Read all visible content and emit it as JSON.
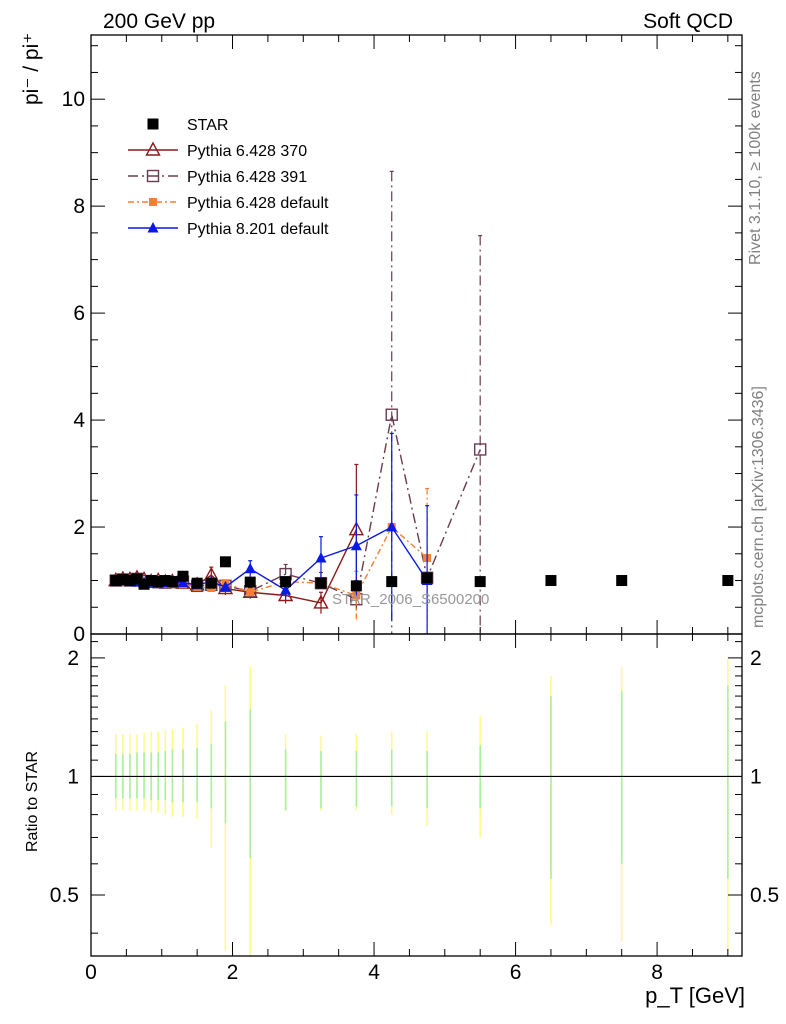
{
  "header": {
    "left": "200 GeV pp",
    "right": "Soft QCD"
  },
  "side_labels": {
    "rivet": "Rivet 3.1.10, ≥ 100k events",
    "source": "mcplots.cern.ch [arXiv:1306.3436]"
  },
  "watermark": "STAR_2006_S6500200",
  "chart_data": {
    "type": "line",
    "top_panel": {
      "ylabel": "pi⁻ / pi⁺",
      "xlim": [
        0,
        9.2
      ],
      "ylim": [
        0,
        11.2
      ],
      "yticks": [
        0,
        2,
        4,
        6,
        8,
        10
      ]
    },
    "ratio_panel": {
      "ylabel": "Ratio to STAR",
      "ylim": [
        0.35,
        2.3
      ],
      "log_scale": true,
      "yticks": [
        0.5,
        1,
        2
      ],
      "bands": [
        {
          "x": 0.35,
          "g": [
            0.88,
            1.14
          ],
          "y": [
            0.82,
            1.28
          ]
        },
        {
          "x": 0.45,
          "g": [
            0.88,
            1.14
          ],
          "y": [
            0.82,
            1.28
          ]
        },
        {
          "x": 0.55,
          "g": [
            0.88,
            1.14
          ],
          "y": [
            0.82,
            1.28
          ]
        },
        {
          "x": 0.65,
          "g": [
            0.88,
            1.15
          ],
          "y": [
            0.82,
            1.28
          ]
        },
        {
          "x": 0.75,
          "g": [
            0.88,
            1.15
          ],
          "y": [
            0.82,
            1.29
          ]
        },
        {
          "x": 0.85,
          "g": [
            0.87,
            1.15
          ],
          "y": [
            0.81,
            1.3
          ]
        },
        {
          "x": 0.95,
          "g": [
            0.87,
            1.15
          ],
          "y": [
            0.81,
            1.3
          ]
        },
        {
          "x": 1.05,
          "g": [
            0.87,
            1.16
          ],
          "y": [
            0.8,
            1.31
          ]
        },
        {
          "x": 1.15,
          "g": [
            0.86,
            1.17
          ],
          "y": [
            0.79,
            1.32
          ]
        },
        {
          "x": 1.3,
          "g": [
            0.86,
            1.17
          ],
          "y": [
            0.79,
            1.33
          ]
        },
        {
          "x": 1.5,
          "g": [
            0.86,
            1.18
          ],
          "y": [
            0.78,
            1.36
          ]
        },
        {
          "x": 1.7,
          "g": [
            0.83,
            1.21
          ],
          "y": [
            0.66,
            1.47
          ]
        },
        {
          "x": 1.9,
          "g": [
            0.76,
            1.38
          ],
          "y": [
            0.36,
            1.7
          ]
        },
        {
          "x": 2.25,
          "g": [
            0.62,
            1.48
          ],
          "y": [
            0.35,
            1.9
          ]
        },
        {
          "x": 2.75,
          "g": [
            0.82,
            1.17
          ],
          "y": [
            0.82,
            1.28
          ]
        },
        {
          "x": 3.25,
          "g": [
            0.83,
            1.16
          ],
          "y": [
            0.82,
            1.27
          ]
        },
        {
          "x": 3.75,
          "g": [
            0.84,
            1.16
          ],
          "y": [
            0.82,
            1.28
          ]
        },
        {
          "x": 4.25,
          "g": [
            0.84,
            1.17
          ],
          "y": [
            0.8,
            1.3
          ]
        },
        {
          "x": 4.75,
          "g": [
            0.83,
            1.16
          ],
          "y": [
            0.75,
            1.3
          ]
        },
        {
          "x": 5.5,
          "g": [
            0.83,
            1.2
          ],
          "y": [
            0.7,
            1.42
          ]
        },
        {
          "x": 6.5,
          "g": [
            0.55,
            1.6
          ],
          "y": [
            0.42,
            1.8
          ]
        },
        {
          "x": 7.5,
          "g": [
            0.6,
            1.65
          ],
          "y": [
            0.38,
            1.9
          ]
        },
        {
          "x": 9.0,
          "g": [
            0.55,
            1.7
          ],
          "y": [
            0.36,
            2.0
          ]
        }
      ]
    },
    "xlabel": "p_T [GeV]",
    "xticks": [
      0,
      2,
      4,
      6,
      8
    ],
    "series": [
      {
        "name": "STAR",
        "marker": "square-filled",
        "color": "#000000",
        "points": [
          {
            "x": 0.35,
            "y": 1.0
          },
          {
            "x": 0.45,
            "y": 1.02
          },
          {
            "x": 0.55,
            "y": 1.0
          },
          {
            "x": 0.65,
            "y": 1.03
          },
          {
            "x": 0.75,
            "y": 0.93
          },
          {
            "x": 0.85,
            "y": 1.0
          },
          {
            "x": 0.95,
            "y": 0.98
          },
          {
            "x": 1.05,
            "y": 1.0
          },
          {
            "x": 1.15,
            "y": 0.98
          },
          {
            "x": 1.3,
            "y": 1.08
          },
          {
            "x": 1.5,
            "y": 0.95
          },
          {
            "x": 1.7,
            "y": 0.95
          },
          {
            "x": 1.9,
            "y": 1.35
          },
          {
            "x": 2.25,
            "y": 0.97
          },
          {
            "x": 2.75,
            "y": 0.98
          },
          {
            "x": 3.25,
            "y": 0.95
          },
          {
            "x": 3.75,
            "y": 0.9
          },
          {
            "x": 4.25,
            "y": 0.98
          },
          {
            "x": 4.75,
            "y": 1.05
          },
          {
            "x": 5.5,
            "y": 0.98
          },
          {
            "x": 6.5,
            "y": 1.0
          },
          {
            "x": 7.5,
            "y": 1.0
          },
          {
            "x": 9.0,
            "y": 1.0
          }
        ]
      },
      {
        "name": "Pythia 6.428 370",
        "marker": "triangle-open",
        "color": "#8b1a1a",
        "dash": "",
        "points": [
          {
            "x": 0.35,
            "y": 1.0
          },
          {
            "x": 0.45,
            "y": 1.03,
            "err": 0.06
          },
          {
            "x": 0.55,
            "y": 1.02
          },
          {
            "x": 0.65,
            "y": 1.05,
            "err": 0.06
          },
          {
            "x": 0.75,
            "y": 1.02
          },
          {
            "x": 0.85,
            "y": 0.98
          },
          {
            "x": 0.95,
            "y": 1.0
          },
          {
            "x": 1.05,
            "y": 0.97
          },
          {
            "x": 1.15,
            "y": 0.98
          },
          {
            "x": 1.3,
            "y": 0.95
          },
          {
            "x": 1.5,
            "y": 0.92,
            "err": 0.08
          },
          {
            "x": 1.7,
            "y": 1.1,
            "err": 0.15
          },
          {
            "x": 1.9,
            "y": 0.85,
            "err": 0.12
          },
          {
            "x": 2.25,
            "y": 0.78,
            "err": 0.12
          },
          {
            "x": 2.75,
            "y": 0.72,
            "err": 0.15
          },
          {
            "x": 3.25,
            "y": 0.58,
            "err": 0.2
          },
          {
            "x": 3.75,
            "y": 1.95,
            "err": 1.22
          }
        ]
      },
      {
        "name": "Pythia 6.428 391",
        "marker": "square-open",
        "color": "#6b3b4f",
        "dash": "10,4,2,4",
        "points": [
          {
            "x": 0.35,
            "y": 1.0
          },
          {
            "x": 0.45,
            "y": 1.02
          },
          {
            "x": 0.55,
            "y": 1.0
          },
          {
            "x": 0.65,
            "y": 1.03
          },
          {
            "x": 0.75,
            "y": 0.99
          },
          {
            "x": 0.85,
            "y": 0.98
          },
          {
            "x": 0.95,
            "y": 0.97
          },
          {
            "x": 1.05,
            "y": 0.96
          },
          {
            "x": 1.15,
            "y": 0.97
          },
          {
            "x": 1.3,
            "y": 0.98
          },
          {
            "x": 1.5,
            "y": 0.9
          },
          {
            "x": 1.7,
            "y": 0.92
          },
          {
            "x": 1.9,
            "y": 0.9
          },
          {
            "x": 2.25,
            "y": 0.8
          },
          {
            "x": 2.75,
            "y": 1.12,
            "err": 0.18
          },
          {
            "x": 3.25,
            "y": 0.95,
            "err": 0.2
          },
          {
            "x": 3.75,
            "y": 0.65,
            "err": 0.35
          },
          {
            "x": 4.25,
            "y": 4.1,
            "err": 4.55
          },
          {
            "x": 4.75,
            "y": 1.05
          },
          {
            "x": 5.5,
            "y": 3.45,
            "err": 4.0
          }
        ]
      },
      {
        "name": "Pythia 6.428 default",
        "marker": "square-filled-small",
        "color": "#f57f32",
        "dash": "6,3,2,3",
        "points": [
          {
            "x": 0.35,
            "y": 1.0
          },
          {
            "x": 0.45,
            "y": 1.0
          },
          {
            "x": 0.55,
            "y": 0.98
          },
          {
            "x": 0.65,
            "y": 1.0
          },
          {
            "x": 0.75,
            "y": 0.98
          },
          {
            "x": 0.85,
            "y": 0.96
          },
          {
            "x": 0.95,
            "y": 0.95
          },
          {
            "x": 1.05,
            "y": 0.94
          },
          {
            "x": 1.15,
            "y": 0.96
          },
          {
            "x": 1.3,
            "y": 0.93
          },
          {
            "x": 1.5,
            "y": 0.88
          },
          {
            "x": 1.7,
            "y": 0.86
          },
          {
            "x": 1.9,
            "y": 0.95
          },
          {
            "x": 2.25,
            "y": 0.78
          },
          {
            "x": 2.75,
            "y": 0.98
          },
          {
            "x": 3.25,
            "y": 0.95
          },
          {
            "x": 3.75,
            "y": 0.72,
            "err": 0.45
          },
          {
            "x": 4.25,
            "y": 2.0
          },
          {
            "x": 4.75,
            "y": 1.42,
            "err": 1.3
          }
        ]
      },
      {
        "name": "Pythia 8.201 default",
        "marker": "triangle-filled",
        "color": "#0a19e6",
        "dash": "",
        "points": [
          {
            "x": 0.35,
            "y": 0.98
          },
          {
            "x": 0.45,
            "y": 1.0
          },
          {
            "x": 0.55,
            "y": 0.98
          },
          {
            "x": 0.65,
            "y": 0.97
          },
          {
            "x": 0.75,
            "y": 0.96
          },
          {
            "x": 0.85,
            "y": 0.95
          },
          {
            "x": 0.95,
            "y": 0.94
          },
          {
            "x": 1.05,
            "y": 0.96
          },
          {
            "x": 1.15,
            "y": 0.98
          },
          {
            "x": 1.3,
            "y": 0.96
          },
          {
            "x": 1.5,
            "y": 0.92
          },
          {
            "x": 1.7,
            "y": 0.98
          },
          {
            "x": 1.9,
            "y": 0.88
          },
          {
            "x": 2.25,
            "y": 1.22,
            "err": 0.15
          },
          {
            "x": 2.75,
            "y": 0.82,
            "err": 0.15
          },
          {
            "x": 3.25,
            "y": 1.42,
            "err": 0.4
          },
          {
            "x": 3.75,
            "y": 1.65,
            "err": 0.95
          },
          {
            "x": 4.25,
            "y": 2.0,
            "err": 1.75
          },
          {
            "x": 4.75,
            "y": 1.0,
            "err": 1.4
          }
        ]
      }
    ]
  }
}
